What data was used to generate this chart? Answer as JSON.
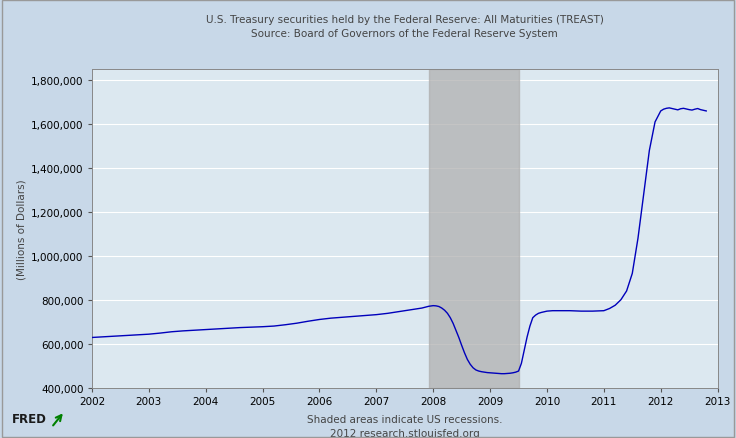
{
  "title_line1": "U.S. Treasury securities held by the Federal Reserve: All Maturities (TREAST)",
  "title_line2": "Source: Board of Governors of the Federal Reserve System",
  "ylabel": "(Millions of Dollars)",
  "xlabel_note1": "Shaded areas indicate US recessions.",
  "xlabel_note2": "2012 research.stlouisfed.org",
  "background_color": "#c8d8e8",
  "plot_bg_color": "#dce8f0",
  "line_color": "#0000bb",
  "recession_color": "#b0b0b0",
  "recession_alpha": 0.75,
  "recession_start": 2007.92,
  "recession_end": 2009.5,
  "ylim": [
    400000,
    1850000
  ],
  "xlim_start": 2002,
  "xlim_end": 2013,
  "yticks": [
    400000,
    600000,
    800000,
    1000000,
    1200000,
    1400000,
    1600000,
    1800000
  ],
  "xticks": [
    2002,
    2003,
    2004,
    2005,
    2006,
    2007,
    2008,
    2009,
    2010,
    2011,
    2012,
    2013
  ],
  "data_x": [
    2002.0,
    2002.2,
    2002.4,
    2002.6,
    2002.8,
    2003.0,
    2003.2,
    2003.4,
    2003.6,
    2003.8,
    2004.0,
    2004.2,
    2004.4,
    2004.6,
    2004.8,
    2005.0,
    2005.2,
    2005.4,
    2005.6,
    2005.8,
    2006.0,
    2006.2,
    2006.4,
    2006.6,
    2006.8,
    2007.0,
    2007.2,
    2007.4,
    2007.6,
    2007.8,
    2007.92,
    2008.0,
    2008.05,
    2008.1,
    2008.15,
    2008.2,
    2008.25,
    2008.3,
    2008.35,
    2008.4,
    2008.45,
    2008.5,
    2008.55,
    2008.6,
    2008.65,
    2008.7,
    2008.75,
    2008.8,
    2008.85,
    2008.9,
    2008.95,
    2009.0,
    2009.05,
    2009.1,
    2009.15,
    2009.2,
    2009.25,
    2009.3,
    2009.35,
    2009.4,
    2009.45,
    2009.5,
    2009.55,
    2009.6,
    2009.65,
    2009.7,
    2009.75,
    2009.8,
    2009.85,
    2009.9,
    2009.95,
    2010.0,
    2010.1,
    2010.2,
    2010.4,
    2010.6,
    2010.8,
    2011.0,
    2011.1,
    2011.2,
    2011.3,
    2011.4,
    2011.5,
    2011.6,
    2011.7,
    2011.8,
    2011.9,
    2012.0,
    2012.05,
    2012.1,
    2012.15,
    2012.2,
    2012.25,
    2012.3,
    2012.35,
    2012.4,
    2012.45,
    2012.5,
    2012.55,
    2012.6,
    2012.65,
    2012.7,
    2012.75,
    2012.8
  ],
  "data_y": [
    628000,
    631000,
    634000,
    637000,
    640000,
    643000,
    648000,
    654000,
    658000,
    661000,
    664000,
    667000,
    670000,
    673000,
    675000,
    677000,
    680000,
    686000,
    693000,
    702000,
    710000,
    716000,
    720000,
    724000,
    728000,
    732000,
    738000,
    746000,
    754000,
    762000,
    770000,
    773000,
    772000,
    769000,
    762000,
    752000,
    738000,
    718000,
    692000,
    660000,
    628000,
    592000,
    558000,
    528000,
    506000,
    490000,
    480000,
    475000,
    472000,
    470000,
    468000,
    467000,
    466000,
    465000,
    464000,
    463000,
    463000,
    464000,
    465000,
    467000,
    470000,
    475000,
    510000,
    570000,
    630000,
    680000,
    718000,
    730000,
    738000,
    742000,
    745000,
    748000,
    750000,
    750000,
    750000,
    748000,
    748000,
    750000,
    760000,
    775000,
    800000,
    840000,
    920000,
    1080000,
    1280000,
    1480000,
    1610000,
    1660000,
    1668000,
    1672000,
    1674000,
    1671000,
    1668000,
    1665000,
    1670000,
    1672000,
    1669000,
    1666000,
    1664000,
    1668000,
    1671000,
    1666000,
    1663000,
    1660000
  ]
}
